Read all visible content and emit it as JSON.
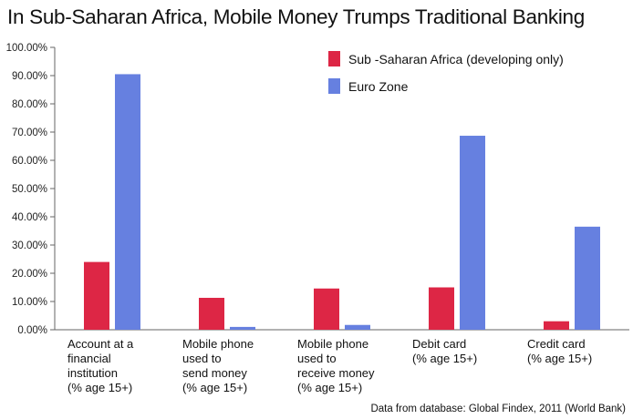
{
  "chart_data": {
    "type": "bar",
    "title": "In Sub-Saharan Africa, Mobile Money Trumps Traditional Banking",
    "categories": [
      [
        "Account at a",
        "financial",
        "institution",
        "(% age 15+)"
      ],
      [
        "Mobile phone",
        "used to",
        "send money",
        "(% age 15+)"
      ],
      [
        "Mobile phone",
        "used to",
        "receive money",
        "(% age 15+)"
      ],
      [
        "Debit card",
        "(% age 15+)"
      ],
      [
        "Credit card",
        "(% age 15+)"
      ]
    ],
    "series": [
      {
        "name": "Sub -Saharan Africa (developing only)",
        "color": "#dd2645",
        "values": [
          24.0,
          11.3,
          14.6,
          15.0,
          3.0
        ]
      },
      {
        "name": "Euro Zone",
        "color": "#6680e0",
        "values": [
          90.5,
          1.0,
          1.7,
          68.7,
          36.5
        ]
      }
    ],
    "ylim": [
      0,
      100
    ],
    "yticks": [
      0,
      10,
      20,
      30,
      40,
      50,
      60,
      70,
      80,
      90,
      100
    ],
    "ytick_labels": [
      "0.00%",
      "10.00%",
      "20.00%",
      "30.00%",
      "40.00%",
      "50.00%",
      "60.00%",
      "70.00%",
      "80.00%",
      "90.00%",
      "100.00%"
    ],
    "grid": false,
    "legend_position": "top-right",
    "source_note": "Data from database: Global Findex, 2011 (World Bank)"
  }
}
